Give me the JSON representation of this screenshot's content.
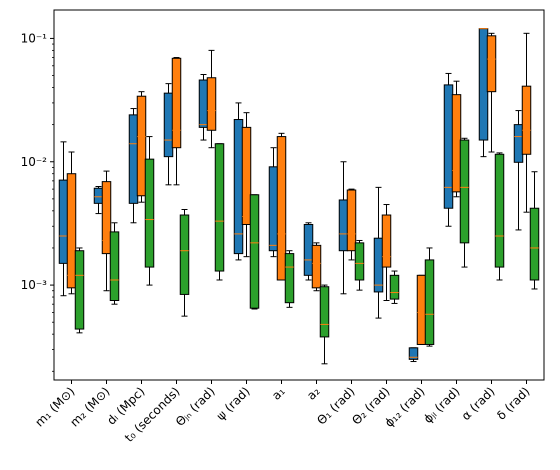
{
  "chart_data": {
    "type": "boxplot",
    "y_scale": "log",
    "ylim": [
      0.00017,
      0.17
    ],
    "y_ticks": [
      {
        "value": 0.001,
        "label": "10⁻³"
      },
      {
        "value": 0.01,
        "label": "10⁻²"
      },
      {
        "value": 0.1,
        "label": "10⁻¹"
      }
    ],
    "grid": false,
    "legend": "none",
    "median_color": "#ff7f0e",
    "categories": [
      "m₁ (M⊙)",
      "m₂ (M⊙)",
      "dₗ (Mpc)",
      "t₀ (seconds)",
      "Θⱼₙ (rad)",
      "ψ (rad)",
      "a₁",
      "a₂",
      "Θ₁ (rad)",
      "Θ₂ (rad)",
      "ϕ₁₂ (rad)",
      "ϕⱼₗ (rad)",
      "α (rad)",
      "δ (rad)"
    ],
    "series": [
      {
        "color": "#1f77b4",
        "boxes": [
          {
            "whislo": 0.00082,
            "q1": 0.0015,
            "med": 0.0025,
            "q3": 0.0071,
            "whishi": 0.0145
          },
          {
            "whislo": 0.0038,
            "q1": 0.0046,
            "med": 0.0052,
            "q3": 0.0061,
            "whishi": 0.0063
          },
          {
            "whislo": 0.0032,
            "q1": 0.0046,
            "med": 0.014,
            "q3": 0.024,
            "whishi": 0.027
          },
          {
            "whislo": 0.0065,
            "q1": 0.011,
            "med": 0.015,
            "q3": 0.036,
            "whishi": 0.043
          },
          {
            "whislo": 0.015,
            "q1": 0.019,
            "med": 0.02,
            "q3": 0.046,
            "whishi": 0.051
          },
          {
            "whislo": 0.0016,
            "q1": 0.0018,
            "med": 0.0026,
            "q3": 0.022,
            "whishi": 0.03
          },
          {
            "whislo": 0.0017,
            "q1": 0.0019,
            "med": 0.0021,
            "q3": 0.0091,
            "whishi": 0.013
          },
          {
            "whislo": 0.0011,
            "q1": 0.0012,
            "med": 0.0016,
            "q3": 0.0031,
            "whishi": 0.0032
          },
          {
            "whislo": 0.00085,
            "q1": 0.0019,
            "med": 0.0026,
            "q3": 0.0049,
            "whishi": 0.01
          },
          {
            "whislo": 0.00054,
            "q1": 0.00088,
            "med": 0.001,
            "q3": 0.0024,
            "whishi": 0.0062
          },
          {
            "whislo": 0.00024,
            "q1": 0.00025,
            "med": 0.00026,
            "q3": 0.00031,
            "whishi": 0.00031
          },
          {
            "whislo": 0.003,
            "q1": 0.0042,
            "med": 0.0062,
            "q3": 0.042,
            "whishi": 0.052
          },
          {
            "whislo": 0.011,
            "q1": 0.015,
            "med": 0.12,
            "q3": 0.12,
            "whishi": 0.12
          },
          {
            "whislo": 0.0028,
            "q1": 0.0099,
            "med": 0.016,
            "q3": 0.02,
            "whishi": 0.026
          }
        ]
      },
      {
        "color": "#ff7f0e",
        "boxes": [
          {
            "whislo": 0.00085,
            "q1": 0.00095,
            "med": 0.0012,
            "q3": 0.008,
            "whishi": 0.012
          },
          {
            "whislo": 0.0009,
            "q1": 0.0018,
            "med": 0.0023,
            "q3": 0.0069,
            "whishi": 0.0084
          },
          {
            "whislo": 0.0047,
            "q1": 0.0053,
            "med": 0.016,
            "q3": 0.034,
            "whishi": 0.037
          },
          {
            "whislo": 0.0065,
            "q1": 0.013,
            "med": 0.018,
            "q3": 0.069,
            "whishi": 0.07
          },
          {
            "whislo": 0.013,
            "q1": 0.018,
            "med": 0.026,
            "q3": 0.048,
            "whishi": 0.08
          },
          {
            "whislo": 0.0017,
            "q1": 0.0031,
            "med": 0.0036,
            "q3": 0.019,
            "whishi": 0.025
          },
          {
            "whislo": 0.0011,
            "q1": 0.0011,
            "med": 0.0026,
            "q3": 0.016,
            "whishi": 0.017
          },
          {
            "whislo": 0.0009,
            "q1": 0.00095,
            "med": 0.0015,
            "q3": 0.0021,
            "whishi": 0.0022
          },
          {
            "whislo": 0.0016,
            "q1": 0.0019,
            "med": 0.0026,
            "q3": 0.0059,
            "whishi": 0.006
          },
          {
            "whislo": 0.00075,
            "q1": 0.0014,
            "med": 0.0017,
            "q3": 0.0037,
            "whishi": 0.0045
          },
          {
            "whislo": 0.00033,
            "q1": 0.00033,
            "med": 0.0006,
            "q3": 0.0012,
            "whishi": 0.0012
          },
          {
            "whislo": 0.0052,
            "q1": 0.0057,
            "med": 0.0085,
            "q3": 0.035,
            "whishi": 0.045
          },
          {
            "whislo": 0.012,
            "q1": 0.037,
            "med": 0.068,
            "q3": 0.105,
            "whishi": 0.11
          },
          {
            "whislo": 0.0039,
            "q1": 0.0115,
            "med": 0.018,
            "q3": 0.041,
            "whishi": 0.11
          }
        ]
      },
      {
        "color": "#2ca02c",
        "boxes": [
          {
            "whislo": 0.00041,
            "q1": 0.00044,
            "med": 0.0012,
            "q3": 0.0019,
            "whishi": 0.002
          },
          {
            "whislo": 0.0007,
            "q1": 0.00075,
            "med": 0.0011,
            "q3": 0.0027,
            "whishi": 0.0032
          },
          {
            "whislo": 0.001,
            "q1": 0.0014,
            "med": 0.0034,
            "q3": 0.0105,
            "whishi": 0.016
          },
          {
            "whislo": 0.00056,
            "q1": 0.00084,
            "med": 0.0019,
            "q3": 0.0037,
            "whishi": 0.0041
          },
          {
            "whislo": 0.0011,
            "q1": 0.0013,
            "med": 0.0033,
            "q3": 0.014,
            "whishi": 0.014
          },
          {
            "whislo": 0.00064,
            "q1": 0.00065,
            "med": 0.0022,
            "q3": 0.0054,
            "whishi": 0.0054
          },
          {
            "whislo": 0.00066,
            "q1": 0.00072,
            "med": 0.0014,
            "q3": 0.0018,
            "whishi": 0.0019
          },
          {
            "whislo": 0.00023,
            "q1": 0.00038,
            "med": 0.00048,
            "q3": 0.00097,
            "whishi": 0.001
          },
          {
            "whislo": 0.00091,
            "q1": 0.0011,
            "med": 0.0015,
            "q3": 0.0022,
            "whishi": 0.0023
          },
          {
            "whislo": 0.00071,
            "q1": 0.00077,
            "med": 0.00087,
            "q3": 0.0012,
            "whishi": 0.0013
          },
          {
            "whislo": 0.00032,
            "q1": 0.00033,
            "med": 0.00058,
            "q3": 0.0016,
            "whishi": 0.002
          },
          {
            "whislo": 0.0014,
            "q1": 0.0022,
            "med": 0.0062,
            "q3": 0.015,
            "whishi": 0.0155
          },
          {
            "whislo": 0.0011,
            "q1": 0.0014,
            "med": 0.0025,
            "q3": 0.0115,
            "whishi": 0.0118
          },
          {
            "whislo": 0.00093,
            "q1": 0.0011,
            "med": 0.002,
            "q3": 0.0042,
            "whishi": 0.0083
          }
        ]
      }
    ]
  }
}
